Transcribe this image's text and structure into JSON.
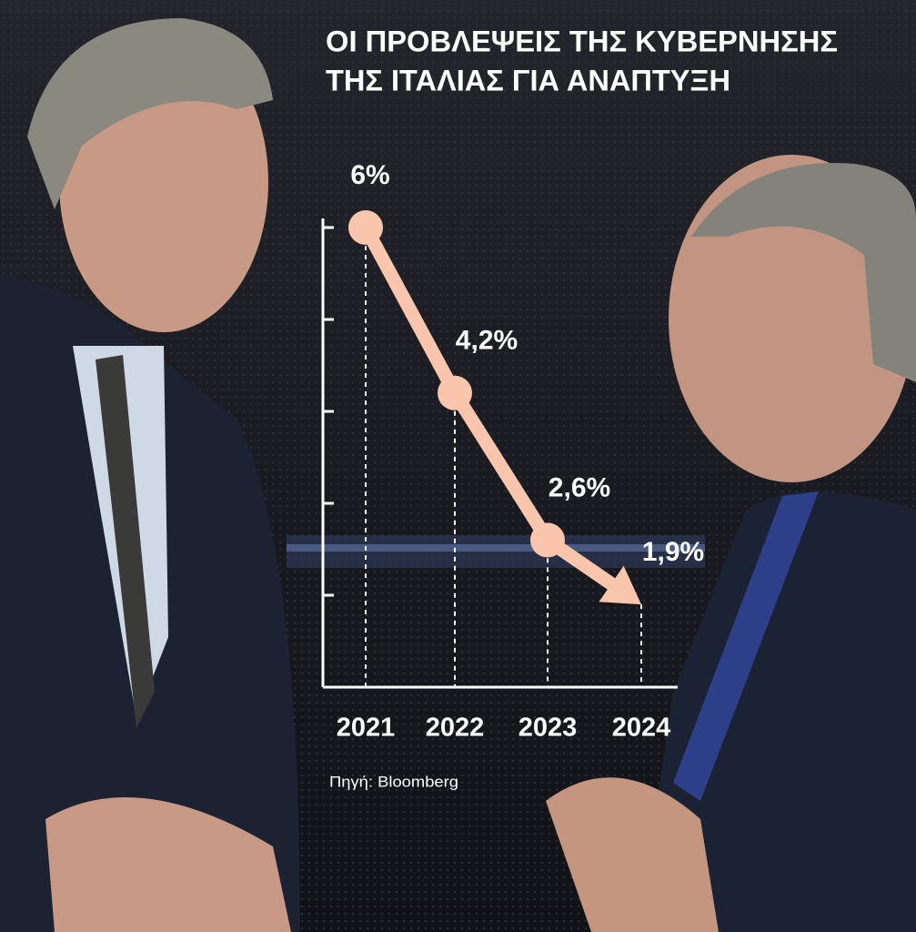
{
  "chart_data": {
    "type": "line",
    "title": [
      "ΟΙ ΠΡΟΒΛΕΨΕΙΣ ΤΗΣ ΚΥΒΕΡΝΗΣΗΣ",
      "ΤΗΣ ΙΤΑΛΙΑΣ ΓΙΑ ΑΝΑΠΤΥΞΗ"
    ],
    "categories": [
      "2021",
      "2022",
      "2023",
      "2024"
    ],
    "values": [
      6,
      4.2,
      2.6,
      1.9
    ],
    "value_labels": [
      "6%",
      "4,2%",
      "2,6%",
      "1,9%"
    ],
    "color": "#f9c6ad",
    "ylim": [
      1,
      6
    ],
    "yticks": [
      2,
      3,
      4,
      5,
      6
    ],
    "source": "Πηγή: Bloomberg"
  }
}
